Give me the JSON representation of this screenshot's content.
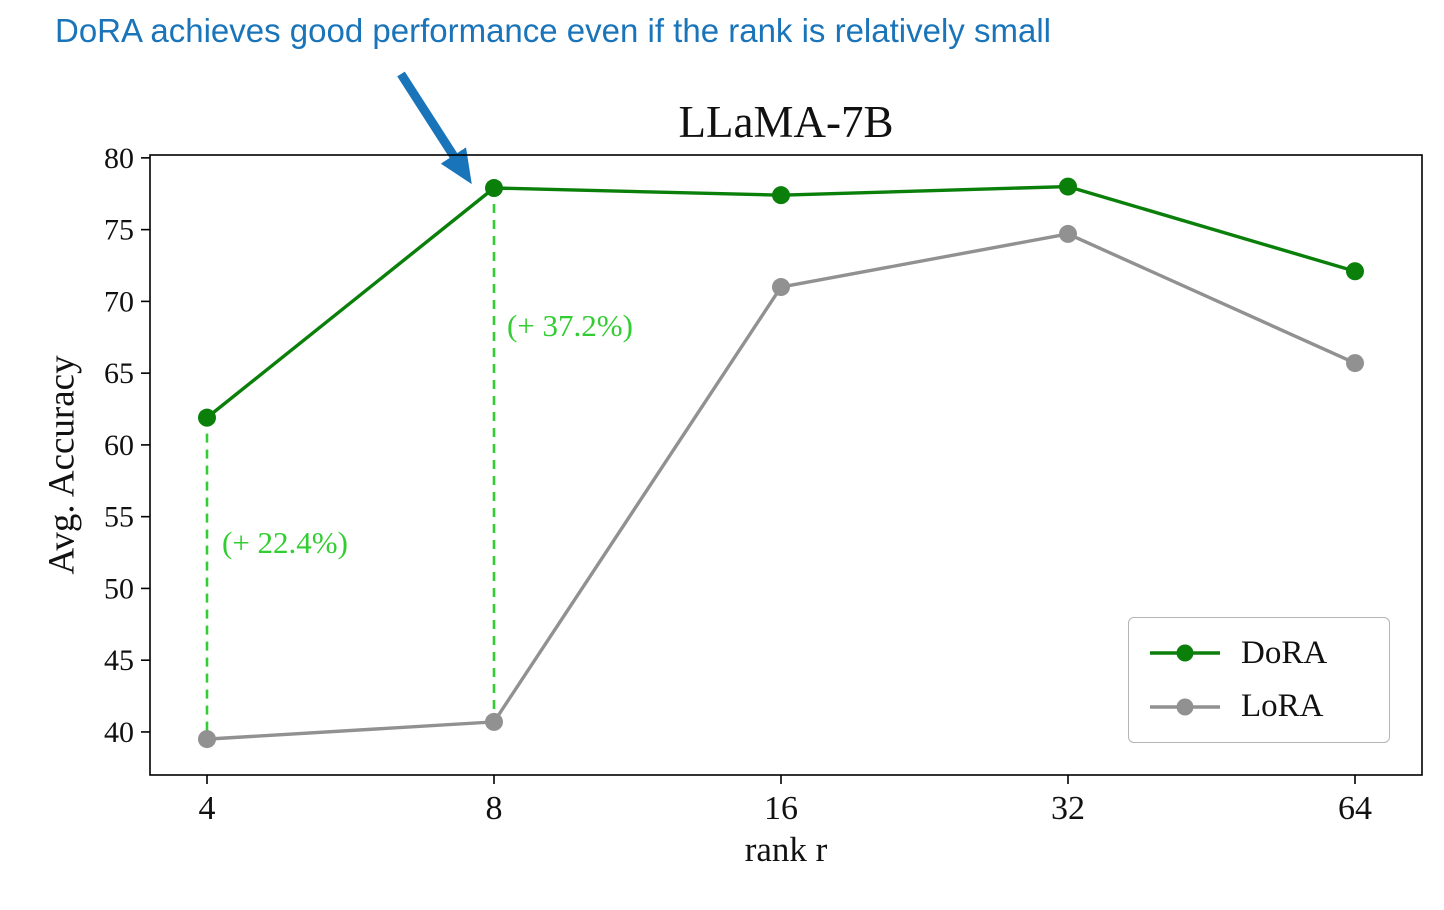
{
  "annotation": {
    "headline": "DoRA achieves good performance even if the rank is relatively small",
    "headline_color": "#1a74b9",
    "arrow_color": "#1a74b9"
  },
  "chart_data": {
    "type": "line",
    "title": "LLaMA-7B",
    "xlabel": "rank r",
    "ylabel": "Avg. Accuracy",
    "x_tick_labels": [
      "4",
      "8",
      "16",
      "32",
      "64"
    ],
    "y_ticks": [
      40,
      45,
      50,
      55,
      60,
      65,
      70,
      75,
      80
    ],
    "ylim": [
      37,
      80.2
    ],
    "grid": false,
    "series": [
      {
        "name": "DoRA",
        "color": "#0a7f0a",
        "values": [
          61.9,
          77.9,
          77.4,
          78.0,
          72.1
        ]
      },
      {
        "name": "LoRA",
        "color": "#919191",
        "values": [
          39.5,
          40.7,
          71.0,
          74.7,
          65.7
        ]
      }
    ],
    "gap_annotations": [
      {
        "x_index": 0,
        "label": "(+ 22.4%)",
        "from": 39.5,
        "to": 61.9
      },
      {
        "x_index": 1,
        "label": "(+ 37.2%)",
        "from": 40.7,
        "to": 77.9
      }
    ],
    "gap_color": "#32cd32",
    "legend": {
      "position": "lower right"
    }
  }
}
